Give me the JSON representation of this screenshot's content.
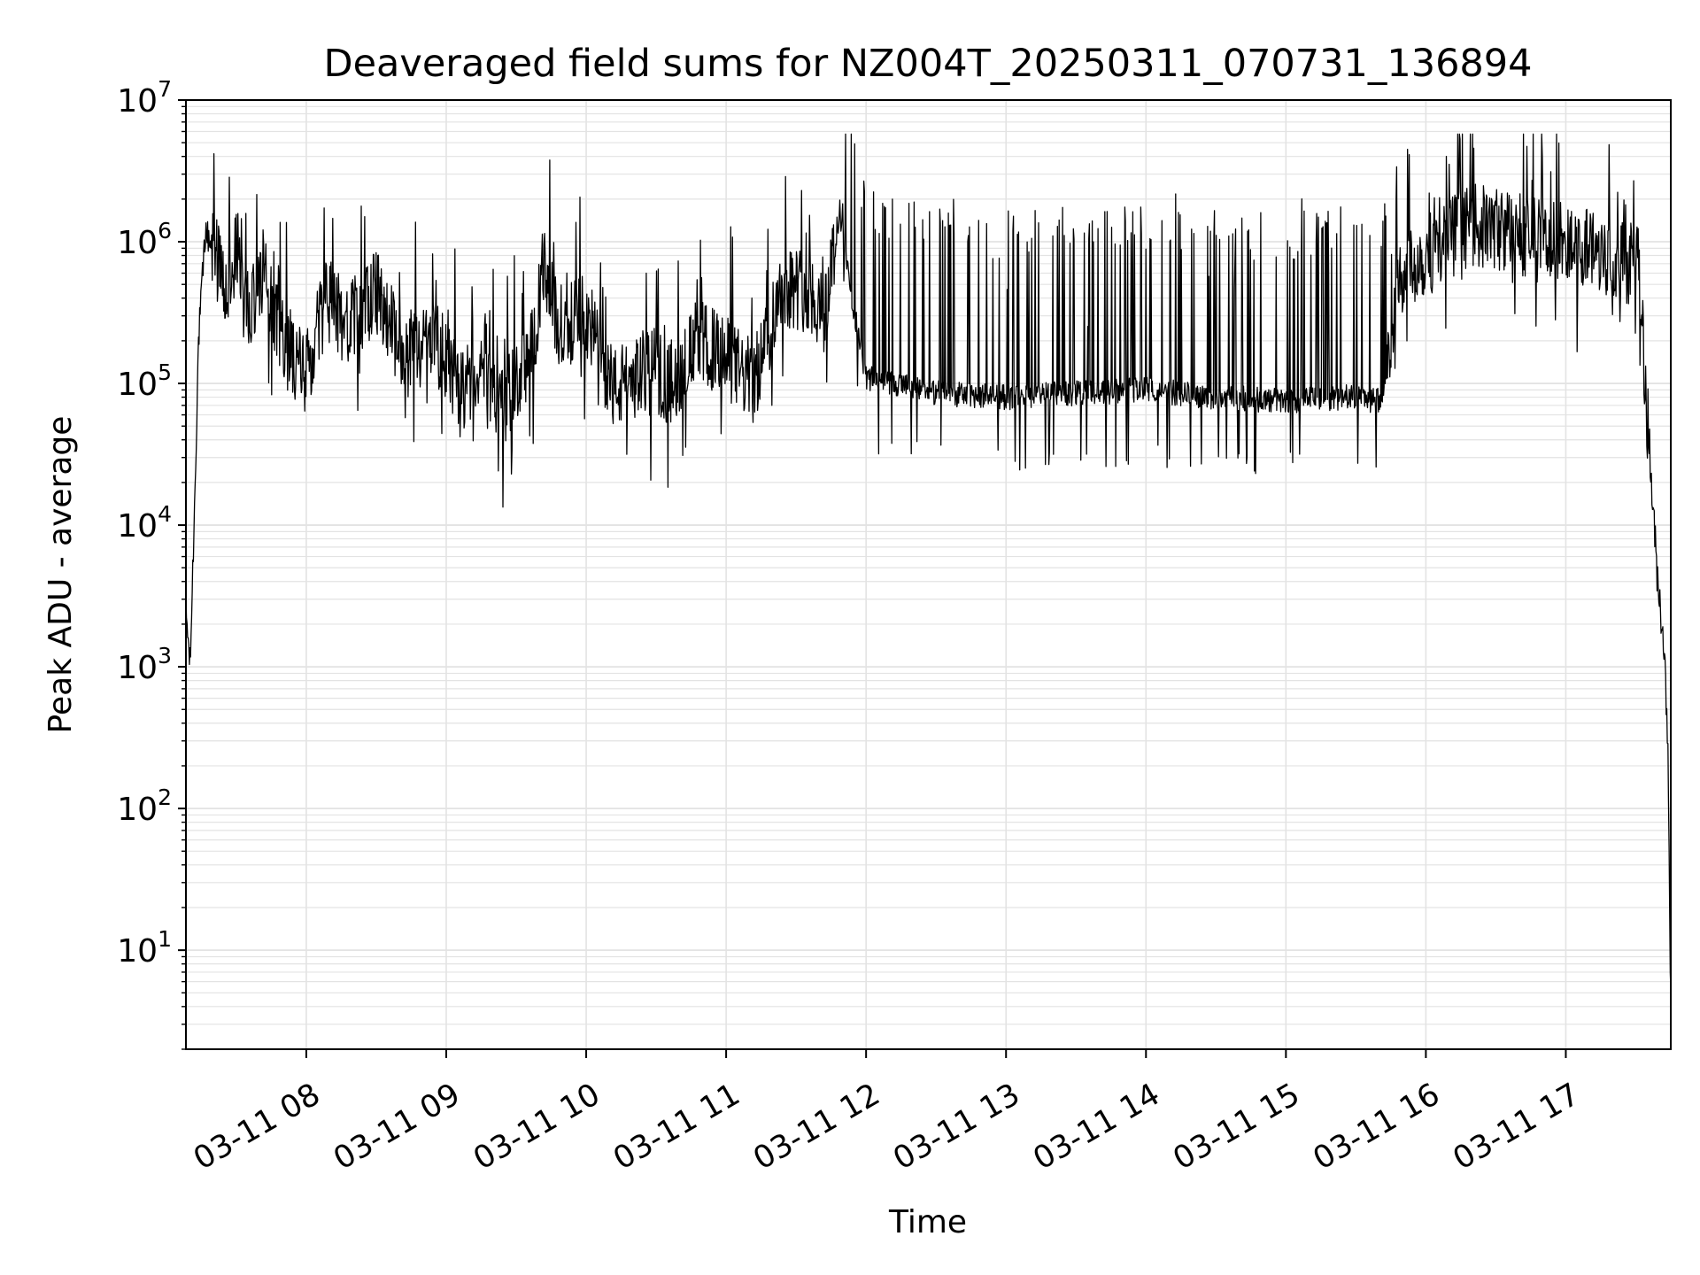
{
  "chart_data": {
    "type": "line",
    "title": "Deaveraged field sums for NZ004T_20250311_070731_136894",
    "xlabel": "Time",
    "ylabel": "Peak ADU - average",
    "x_tick_labels": [
      "03-11 08",
      "03-11 09",
      "03-11 10",
      "03-11 11",
      "03-11 12",
      "03-11 13",
      "03-11 14",
      "03-11 15",
      "03-11 16",
      "03-11 17"
    ],
    "x_ticks_hours": [
      8,
      9,
      10,
      11,
      12,
      13,
      14,
      15,
      16,
      17
    ],
    "xlim_hours": [
      7.14,
      17.75
    ],
    "y_scale": "log",
    "ylim": [
      2,
      10000000
    ],
    "y_tick_labels": [
      {
        "base": "10",
        "exp": "1",
        "value": 10
      },
      {
        "base": "10",
        "exp": "2",
        "value": 100
      },
      {
        "base": "10",
        "exp": "3",
        "value": 1000
      },
      {
        "base": "10",
        "exp": "4",
        "value": 10000
      },
      {
        "base": "10",
        "exp": "5",
        "value": 100000
      },
      {
        "base": "10",
        "exp": "6",
        "value": 1000000
      },
      {
        "base": "10",
        "exp": "7",
        "value": 10000000
      }
    ],
    "grid": true,
    "line_color": "#000000",
    "grid_color": "#e3e3e3",
    "series": [
      {
        "x_hours": [
          7.14,
          7.17,
          7.2,
          7.23,
          7.28,
          7.35,
          7.43,
          7.5,
          7.6,
          7.7,
          7.8,
          7.9,
          8.0,
          8.15,
          8.3,
          8.5,
          8.7,
          8.9,
          9.0,
          9.1,
          9.2,
          9.4,
          9.6,
          9.7,
          9.8,
          10.0,
          10.2,
          10.4,
          10.6,
          10.8,
          11.0,
          11.2,
          11.4,
          11.6,
          11.7,
          11.8,
          11.9,
          12.0,
          12.5,
          13.0,
          13.5,
          14.0,
          14.5,
          15.0,
          15.4,
          15.7,
          15.8,
          16.0,
          16.3,
          16.6,
          16.9,
          17.2,
          17.45,
          17.5,
          17.55,
          17.6,
          17.65,
          17.7,
          17.73,
          17.75
        ],
        "y": [
          2500,
          1000,
          12000,
          200000,
          1200000,
          800000,
          400000,
          900000,
          300000,
          700000,
          250000,
          150000,
          120000,
          400000,
          250000,
          450000,
          150000,
          200000,
          150000,
          80000,
          120000,
          70000,
          150000,
          600000,
          250000,
          300000,
          90000,
          120000,
          100000,
          200000,
          150000,
          100000,
          500000,
          450000,
          300000,
          1500000,
          400000,
          110000,
          85000,
          80000,
          85000,
          90000,
          80000,
          75000,
          80000,
          75000,
          600000,
          800000,
          1300000,
          1200000,
          1000000,
          900000,
          700000,
          1300000,
          200000,
          30000,
          5000,
          1500,
          300,
          4
        ]
      }
    ]
  }
}
